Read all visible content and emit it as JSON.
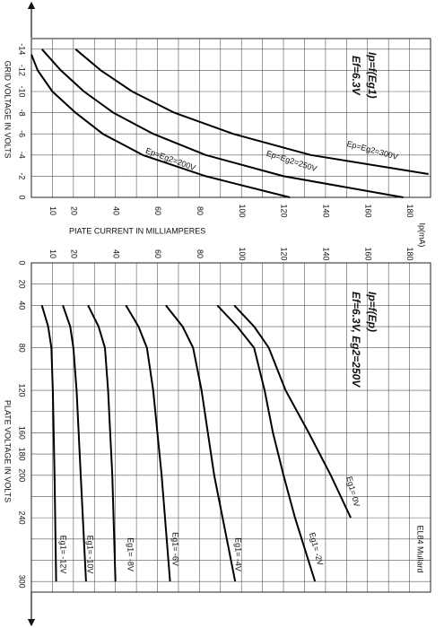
{
  "chart_data": [
    {
      "type": "line",
      "title": "Ip=f(Eg1)",
      "subtitle": "Ef=6.3V",
      "x_label": "GRID VOLTAGE IN VOLTS",
      "y_label": "PIATE CURRENT IN MILLIAMPERES",
      "y_unit_label": "Ip(mA)",
      "xlim": [
        -15,
        0
      ],
      "xticks": [
        -14,
        -12,
        -10,
        -8,
        -6,
        -4,
        -2,
        0
      ],
      "ylim": [
        0,
        190
      ],
      "yticks": [
        10,
        20,
        40,
        60,
        80,
        100,
        120,
        140,
        160,
        180
      ],
      "y_grid_minor": [
        30,
        50,
        70,
        90,
        110,
        130,
        150,
        170
      ],
      "grid": true,
      "series": [
        {
          "name": "Ep=Eg2=200V",
          "color": "#000000",
          "x": [
            -13.5,
            -12,
            -10,
            -8,
            -6,
            -4,
            -2,
            0
          ],
          "values": [
            0,
            3,
            10,
            21,
            34,
            53,
            83,
            123
          ]
        },
        {
          "name": "Ep=Eg2=250V",
          "color": "#000000",
          "x": [
            -14,
            -12,
            -10,
            -8,
            -6,
            -4,
            -2,
            0
          ],
          "values": [
            5,
            14,
            25,
            39,
            58,
            83,
            120,
            177
          ]
        },
        {
          "name": "Ep=Eg2=300V",
          "color": "#000000",
          "x": [
            -14,
            -12,
            -10,
            -8,
            -6,
            -4,
            -2.2
          ],
          "values": [
            21,
            33,
            48,
            68,
            96,
            133,
            189
          ]
        }
      ]
    },
    {
      "type": "line",
      "title": "Ip=f(Ep)",
      "subtitle": "Ef=6.3V, Eg2=250V",
      "x_label": "PLATE VOLTAGE IN VOLTS",
      "xlim": [
        0,
        310
      ],
      "xticks": [
        0,
        20,
        40,
        80,
        120,
        160,
        180,
        200,
        240,
        300
      ],
      "x_grid_minor": [
        60,
        100,
        140,
        220,
        260,
        280
      ],
      "ylim": [
        0,
        190
      ],
      "yticks": [
        10,
        20,
        40,
        60,
        80,
        100,
        120,
        140,
        160,
        180
      ],
      "y_grid_minor": [
        30,
        50,
        70,
        90,
        110,
        130,
        150,
        170
      ],
      "grid": true,
      "series": [
        {
          "name": "Eg1= -12V",
          "color": "#000000",
          "x": [
            40,
            60,
            80,
            120,
            200,
            300
          ],
          "values": [
            5,
            8,
            9.5,
            10.2,
            11,
            11.8
          ]
        },
        {
          "name": "Eg1= -10V",
          "color": "#000000",
          "x": [
            40,
            60,
            80,
            120,
            200,
            300
          ],
          "values": [
            15,
            18.5,
            20,
            21.5,
            23.5,
            26
          ]
        },
        {
          "name": "Eg1= -8V",
          "color": "#000000",
          "x": [
            40,
            60,
            80,
            120,
            200,
            300
          ],
          "values": [
            27,
            32,
            35,
            36.5,
            38.5,
            40
          ]
        },
        {
          "name": "Eg1= -6V",
          "color": "#000000",
          "x": [
            40,
            60,
            80,
            120,
            200,
            300
          ],
          "values": [
            45,
            51,
            55,
            58,
            62,
            66
          ]
        },
        {
          "name": "Eg1= -4V",
          "color": "#000000",
          "x": [
            40,
            60,
            80,
            120,
            200,
            300
          ],
          "values": [
            64,
            72,
            77,
            81,
            87,
            97
          ]
        },
        {
          "name": "Eg1= -2V",
          "color": "#000000",
          "x": [
            40,
            60,
            80,
            120,
            160,
            200,
            240,
            300
          ],
          "values": [
            88.5,
            98,
            106,
            111,
            115,
            120,
            125.5,
            135
          ]
        },
        {
          "name": "Eg1= 0V",
          "color": "#000000",
          "x": [
            40,
            60,
            80,
            120,
            160,
            200,
            240
          ],
          "values": [
            96.6,
            106,
            113,
            121,
            132,
            142.5,
            152
          ]
        }
      ]
    }
  ],
  "caption": "EL84 Mullard"
}
